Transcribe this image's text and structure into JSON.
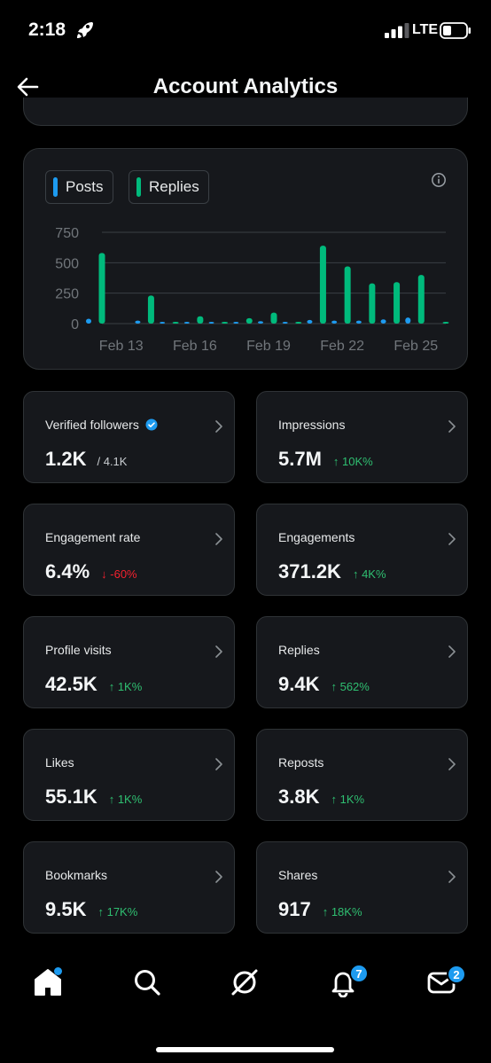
{
  "status_bar": {
    "time": "2:18",
    "network": "LTE",
    "icons": [
      "rocket-icon",
      "signal-icon",
      "battery-icon"
    ]
  },
  "header": {
    "title": "Account Analytics",
    "back_icon": "back-arrow-icon"
  },
  "colors": {
    "posts": "#1d9bf0",
    "replies": "#00ba7c",
    "up": "#2fbf71",
    "down": "#f4212e",
    "accent": "#1d9bf0"
  },
  "legend": {
    "posts_label": "Posts",
    "replies_label": "Replies"
  },
  "chart_data": {
    "type": "bar",
    "x": [
      "Feb 12",
      "Feb 13",
      "Feb 14",
      "Feb 15",
      "Feb 16",
      "Feb 17",
      "Feb 18",
      "Feb 19",
      "Feb 20",
      "Feb 21",
      "Feb 22",
      "Feb 23",
      "Feb 24",
      "Feb 25",
      "Feb 26"
    ],
    "x_tick_labels": [
      "Feb 13",
      "Feb 16",
      "Feb 19",
      "Feb 22",
      "Feb 25"
    ],
    "y_ticks": [
      "0",
      "250",
      "500",
      "750"
    ],
    "ylim": [
      0,
      750
    ],
    "grid": true,
    "series": [
      {
        "name": "Posts",
        "values": [
          40,
          0,
          25,
          5,
          10,
          8,
          12,
          20,
          8,
          30,
          25,
          25,
          35,
          50,
          0
        ]
      },
      {
        "name": "Replies",
        "values": [
          580,
          0,
          230,
          5,
          60,
          8,
          45,
          90,
          5,
          640,
          470,
          330,
          340,
          400,
          15
        ]
      }
    ]
  },
  "stats": [
    {
      "label": "Verified followers",
      "value": "1.2K",
      "extra": "/ 4.1K",
      "change": "",
      "direction": "none",
      "verified": true
    },
    {
      "label": "Impressions",
      "value": "5.7M",
      "change": "↑ 10K%",
      "direction": "up"
    },
    {
      "label": "Engagement rate",
      "value": "6.4%",
      "change": "↓ -60%",
      "direction": "down"
    },
    {
      "label": "Engagements",
      "value": "371.2K",
      "change": "↑ 4K%",
      "direction": "up"
    },
    {
      "label": "Profile visits",
      "value": "42.5K",
      "change": "↑ 1K%",
      "direction": "up"
    },
    {
      "label": "Replies",
      "value": "9.4K",
      "change": "↑ 562%",
      "direction": "up"
    },
    {
      "label": "Likes",
      "value": "55.1K",
      "change": "↑ 1K%",
      "direction": "up"
    },
    {
      "label": "Reposts",
      "value": "3.8K",
      "change": "↑ 1K%",
      "direction": "up"
    },
    {
      "label": "Bookmarks",
      "value": "9.5K",
      "change": "↑ 17K%",
      "direction": "up"
    },
    {
      "label": "Shares",
      "value": "917",
      "change": "↑ 18K%",
      "direction": "up"
    }
  ],
  "nav": {
    "items": [
      "home-icon",
      "search-icon",
      "grok-icon",
      "notifications-icon",
      "messages-icon"
    ],
    "notifications_badge": "7",
    "messages_badge": "2"
  }
}
